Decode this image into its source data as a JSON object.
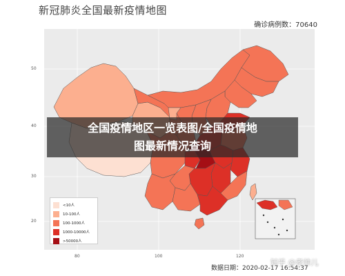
{
  "map": {
    "title": "新冠肺炎全国最新疫情地图",
    "confirmed_label": "确诊病例数：70640",
    "date_label": "数据日期：2020-02-17 16:54:37",
    "y_ticks": [
      "50",
      "40",
      "30",
      "20"
    ],
    "x_ticks": [
      "80",
      "100",
      "120"
    ]
  },
  "legend": {
    "items": [
      {
        "label": "<10人",
        "color": "#fde0d2"
      },
      {
        "label": "10-100人",
        "color": "#fcaf8f"
      },
      {
        "label": "100-1000人",
        "color": "#f47456"
      },
      {
        "label": "1000-10000人",
        "color": "#dd3027"
      },
      {
        "label": ">50000人",
        "color": "#a50f15"
      }
    ]
  },
  "banner": {
    "line1": "全国疫情地区一览表图/全国疫情地",
    "line2": "图最新情况查询"
  },
  "watermark": {
    "text": "知乎 @孝帅儿"
  }
}
